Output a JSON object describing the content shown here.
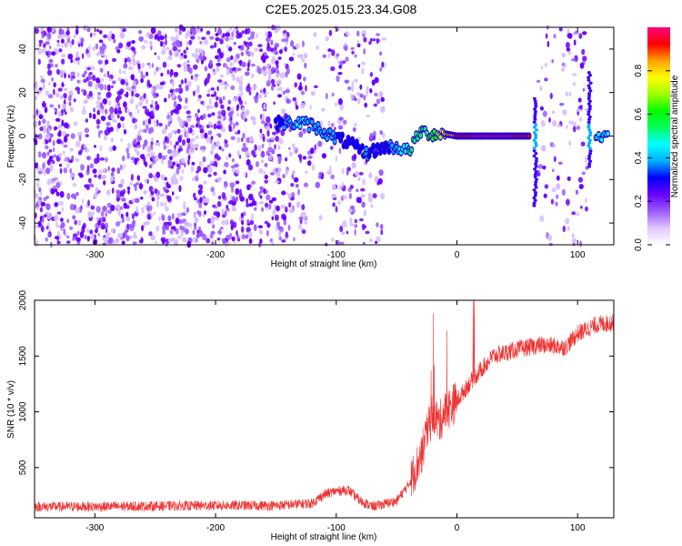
{
  "title": "C2E5.2025.015.23.34.G08",
  "chart_data": [
    {
      "type": "heatmap",
      "name": "spectrogram",
      "xlabel": "Height of straight line (km)",
      "ylabel": "Frequency (Hz)",
      "xlim": [
        -350,
        130
      ],
      "ylim": [
        -50,
        50
      ],
      "xticks": [
        -300,
        -200,
        -100,
        0,
        100
      ],
      "yticks": [
        -40,
        -20,
        0,
        20,
        40
      ],
      "colorbar": {
        "label": "Normalized spectral amplitude",
        "range": [
          0,
          1
        ],
        "ticks": [
          0.0,
          0.2,
          0.4,
          0.6,
          0.8
        ],
        "colormap": [
          "#ffffff",
          "#e0c8ff",
          "#9b5cff",
          "#6a00ff",
          "#0000ff",
          "#00b0ff",
          "#00ffff",
          "#00ff60",
          "#00ff00",
          "#a0ff00",
          "#ffff00",
          "#ffa000",
          "#ff0000",
          "#ff0080"
        ]
      },
      "signal_track": [
        {
          "x": -150,
          "y": 6,
          "amp": 0.3
        },
        {
          "x": -130,
          "y": 6,
          "amp": 0.45
        },
        {
          "x": -120,
          "y": 5,
          "amp": 0.35
        },
        {
          "x": -110,
          "y": 2,
          "amp": 0.4
        },
        {
          "x": -100,
          "y": -1,
          "amp": 0.35
        },
        {
          "x": -90,
          "y": -3,
          "amp": 0.3
        },
        {
          "x": -75,
          "y": -8,
          "amp": 0.35
        },
        {
          "x": -60,
          "y": -5,
          "amp": 0.3
        },
        {
          "x": -50,
          "y": -5,
          "amp": 0.4
        },
        {
          "x": -40,
          "y": -7,
          "amp": 0.5
        },
        {
          "x": -30,
          "y": 2,
          "amp": 0.55
        },
        {
          "x": -20,
          "y": 1,
          "amp": 0.6
        },
        {
          "x": -10,
          "y": 1,
          "amp": 0.8
        },
        {
          "x": 0,
          "y": 0,
          "amp": 0.9
        },
        {
          "x": 20,
          "y": 0,
          "amp": 1.0
        },
        {
          "x": 40,
          "y": 0,
          "amp": 1.0
        },
        {
          "x": 60,
          "y": 0,
          "amp": 0.9
        },
        {
          "x": 115,
          "y": 0,
          "amp": 0.5
        },
        {
          "x": 125,
          "y": 0,
          "amp": 0.45
        }
      ]
    },
    {
      "type": "line",
      "name": "snr",
      "xlabel": "Height of straight line (km)",
      "ylabel": "SNR (10 * v/v)",
      "xlim": [
        -350,
        130
      ],
      "ylim": [
        50,
        2000
      ],
      "xticks": [
        -300,
        -200,
        -100,
        0,
        100
      ],
      "yticks": [
        500,
        1000,
        1500,
        2000
      ],
      "color": "#ee3333",
      "envelope": [
        {
          "x": -350,
          "y": 150
        },
        {
          "x": -300,
          "y": 150
        },
        {
          "x": -250,
          "y": 155
        },
        {
          "x": -200,
          "y": 160
        },
        {
          "x": -150,
          "y": 160
        },
        {
          "x": -120,
          "y": 180
        },
        {
          "x": -110,
          "y": 260
        },
        {
          "x": -100,
          "y": 290
        },
        {
          "x": -90,
          "y": 300
        },
        {
          "x": -80,
          "y": 200
        },
        {
          "x": -70,
          "y": 150
        },
        {
          "x": -50,
          "y": 200
        },
        {
          "x": -40,
          "y": 350
        },
        {
          "x": -30,
          "y": 600
        },
        {
          "x": -25,
          "y": 800
        },
        {
          "x": -20,
          "y": 1000
        },
        {
          "x": -15,
          "y": 900
        },
        {
          "x": -10,
          "y": 1000
        },
        {
          "x": -5,
          "y": 1050
        },
        {
          "x": 0,
          "y": 1100
        },
        {
          "x": 10,
          "y": 1250
        },
        {
          "x": 20,
          "y": 1380
        },
        {
          "x": 30,
          "y": 1500
        },
        {
          "x": 50,
          "y": 1560
        },
        {
          "x": 70,
          "y": 1600
        },
        {
          "x": 90,
          "y": 1580
        },
        {
          "x": 100,
          "y": 1700
        },
        {
          "x": 115,
          "y": 1780
        },
        {
          "x": 130,
          "y": 1800
        }
      ]
    }
  ]
}
